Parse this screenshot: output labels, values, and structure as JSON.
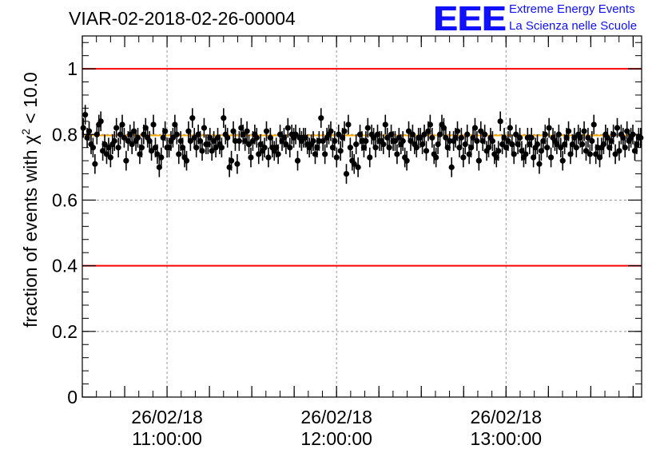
{
  "title": "VIAR-02-2018-02-26-00004",
  "logo": {
    "mark": "EEE",
    "line1": "Extreme Energy Events",
    "line2": "La Scienza nelle Scuole",
    "color": "#1010ff"
  },
  "ylabel": {
    "prefix": "fraction of events with ",
    "symbol": "χ",
    "sup": "2",
    "suffix": " < 10.0"
  },
  "chart_data": {
    "type": "scatter",
    "title": "VIAR-02-2018-02-26-00004",
    "ylabel": "fraction of events with χ² < 10.0",
    "xlim": [
      "2018-02-26 10:30:00",
      "2018-02-26 13:48:00"
    ],
    "ylim": [
      0,
      1.1
    ],
    "yticks": [
      0,
      0.2,
      0.4,
      0.6,
      0.8,
      1
    ],
    "ytick_labels": [
      "0",
      "0.2",
      "0.4",
      "0.6",
      "0.8",
      "1"
    ],
    "xticks": [
      "2018-02-26 11:00:00",
      "2018-02-26 12:00:00",
      "2018-02-26 13:00:00"
    ],
    "xtick_labels": [
      [
        "26/02/18",
        "11:00:00"
      ],
      [
        "26/02/18",
        "12:00:00"
      ],
      [
        "26/02/18",
        "13:00:00"
      ]
    ],
    "grid": true,
    "reference_lines": [
      {
        "y": 1.0,
        "color": "#ff0000"
      },
      {
        "y": 0.4,
        "color": "#ff0000"
      },
      {
        "y": 0.797,
        "color": "#ffaa00"
      }
    ],
    "series": [
      {
        "marker_color": "#000000",
        "x_start": "2018-02-26 10:30:00",
        "x_end": "2018-02-26 13:48:00",
        "error": 0.03,
        "y": [
          0.82,
          0.86,
          0.79,
          0.81,
          0.77,
          0.76,
          0.71,
          0.8,
          0.83,
          0.84,
          0.75,
          0.77,
          0.74,
          0.76,
          0.73,
          0.77,
          0.78,
          0.82,
          0.76,
          0.8,
          0.83,
          0.79,
          0.72,
          0.78,
          0.8,
          0.77,
          0.81,
          0.78,
          0.79,
          0.74,
          0.76,
          0.8,
          0.82,
          0.79,
          0.78,
          0.75,
          0.83,
          0.76,
          0.74,
          0.7,
          0.73,
          0.79,
          0.81,
          0.76,
          0.76,
          0.78,
          0.79,
          0.83,
          0.8,
          0.74,
          0.78,
          0.76,
          0.73,
          0.72,
          0.81,
          0.78,
          0.85,
          0.79,
          0.76,
          0.8,
          0.78,
          0.75,
          0.82,
          0.77,
          0.77,
          0.79,
          0.75,
          0.78,
          0.76,
          0.79,
          0.77,
          0.76,
          0.85,
          0.8,
          0.79,
          0.7,
          0.72,
          0.81,
          0.78,
          0.71,
          0.78,
          0.82,
          0.8,
          0.78,
          0.81,
          0.77,
          0.73,
          0.78,
          0.8,
          0.79,
          0.74,
          0.77,
          0.75,
          0.76,
          0.81,
          0.73,
          0.79,
          0.76,
          0.75,
          0.76,
          0.74,
          0.8,
          0.78,
          0.79,
          0.77,
          0.82,
          0.76,
          0.8,
          0.79,
          0.8,
          0.72,
          0.79,
          0.78,
          0.79,
          0.79,
          0.77,
          0.76,
          0.77,
          0.78,
          0.74,
          0.76,
          0.78,
          0.85,
          0.78,
          0.74,
          0.79,
          0.8,
          0.81,
          0.76,
          0.78,
          0.73,
          0.8,
          0.75,
          0.79,
          0.81,
          0.68,
          0.83,
          0.76,
          0.72,
          0.71,
          0.77,
          0.7,
          0.8,
          0.78,
          0.76,
          0.78,
          0.82,
          0.73,
          0.8,
          0.79,
          0.76,
          0.8,
          0.78,
          0.78,
          0.77,
          0.83,
          0.79,
          0.76,
          0.8,
          0.78,
          0.78,
          0.74,
          0.79,
          0.77,
          0.78,
          0.73,
          0.72,
          0.81,
          0.78,
          0.8,
          0.77,
          0.76,
          0.79,
          0.79,
          0.77,
          0.8,
          0.75,
          0.81,
          0.83,
          0.79,
          0.74,
          0.73,
          0.77,
          0.8,
          0.83,
          0.82,
          0.79,
          0.76,
          0.78,
          0.7,
          0.78,
          0.79,
          0.81,
          0.76,
          0.79,
          0.73,
          0.77,
          0.8,
          0.74,
          0.76,
          0.79,
          0.82,
          0.78,
          0.72,
          0.81,
          0.78,
          0.8,
          0.75,
          0.76,
          0.79,
          0.78,
          0.74,
          0.73,
          0.75,
          0.84,
          0.77,
          0.79,
          0.76,
          0.78,
          0.82,
          0.77,
          0.74,
          0.8,
          0.77,
          0.79,
          0.75,
          0.73,
          0.74,
          0.79,
          0.77,
          0.79,
          0.73,
          0.76,
          0.77,
          0.71,
          0.75,
          0.78,
          0.8,
          0.76,
          0.82,
          0.73,
          0.79,
          0.78,
          0.77,
          0.8,
          0.76,
          0.72,
          0.77,
          0.79,
          0.81,
          0.74,
          0.77,
          0.79,
          0.76,
          0.8,
          0.79,
          0.77,
          0.81,
          0.75,
          0.79,
          0.74,
          0.78,
          0.83,
          0.74,
          0.76,
          0.73,
          0.76,
          0.77,
          0.8,
          0.79,
          0.76,
          0.78,
          0.8,
          0.74,
          0.82,
          0.75,
          0.8,
          0.79,
          0.76,
          0.81,
          0.78,
          0.79,
          0.8,
          0.75,
          0.77,
          0.79,
          0.79
        ]
      }
    ]
  }
}
